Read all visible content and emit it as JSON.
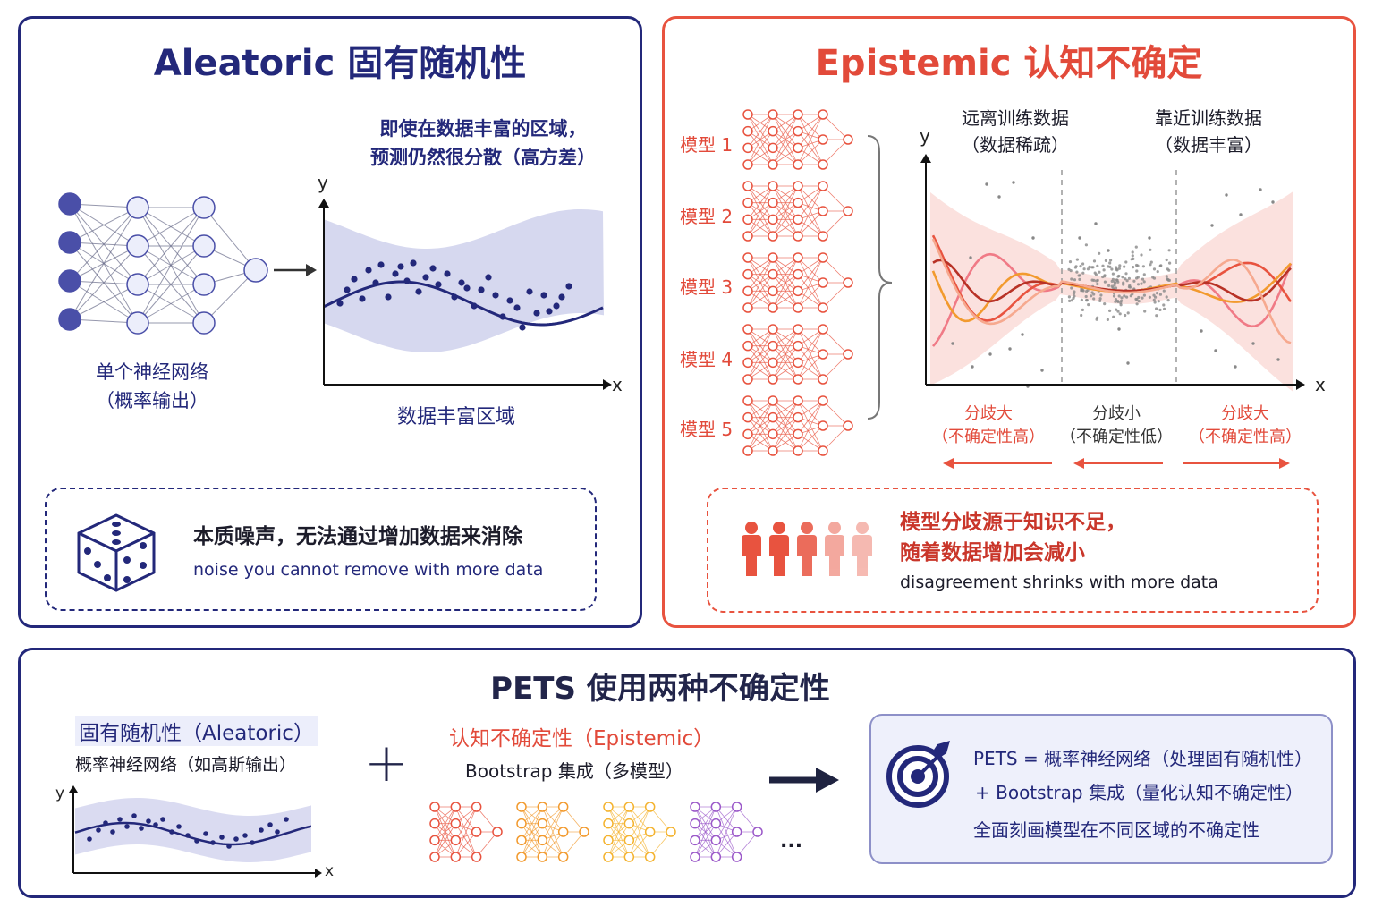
{
  "aleatoric": {
    "title": "Aleatoric 固有随机性",
    "callout_line1": "即使在数据丰富的区域，",
    "callout_line2": "预测仍然很分散（高方差）",
    "net_label_line1": "单个神经网络",
    "net_label_line2": "（概率输出）",
    "axis_y": "y",
    "axis_x": "x",
    "plot_caption": "数据丰富区域",
    "note_main": "本质噪声，无法通过增加数据来消除",
    "note_sub": "noise you cannot remove with more data",
    "icon": "dice-icon",
    "colors": {
      "navy": "#23287a",
      "node_fill": "#eceefb",
      "band": "#c9cbe8"
    }
  },
  "epistemic": {
    "title": "Epistemic 认知不确定",
    "models": [
      "模型 1",
      "模型 2",
      "模型 3",
      "模型 4",
      "模型 5"
    ],
    "region_far_line1": "远离训练数据",
    "region_far_line2": "（数据稀疏）",
    "region_near_line1": "靠近训练数据",
    "region_near_line2": "（数据丰富）",
    "axis_y": "y",
    "axis_x": "x",
    "div_left_line1": "分歧大",
    "div_left_line2": "（不确定性高）",
    "div_mid_line1": "分歧小",
    "div_mid_line2": "（不确定性低）",
    "div_right_line1": "分歧大",
    "div_right_line2": "（不确定性高）",
    "note_main_line1": "模型分歧源于知识不足，",
    "note_main_line2": "随着数据增加会减小",
    "note_sub": "disagreement shrinks with more data",
    "icon": "people-icon",
    "colors": {
      "red": "#e8533f",
      "orange": "#f29a2e",
      "pink": "#f07a86",
      "darkred": "#b83226"
    }
  },
  "pets": {
    "title": "PETS 使用两种不确定性",
    "left_title": "固有随机性（Aleatoric）",
    "left_sub": "概率神经网络（如高斯输出）",
    "axis_y": "y",
    "axis_x": "x",
    "plus": "+",
    "mid_title": "认知不确定性（Epistemic）",
    "mid_sub": "Bootstrap 集成（多模型）",
    "ellipsis": "...",
    "summary_line1": "PETS = 概率神经网络（处理固有随机性）",
    "summary_line2": "+ Bootstrap 集成（量化认知不确定性）",
    "summary_line3": "全面刻画模型在不同区域的不确定性",
    "icon": "target-icon",
    "ensemble_colors": [
      "#e8533f",
      "#f29a2e",
      "#f4b32f",
      "#9b59c9"
    ]
  }
}
